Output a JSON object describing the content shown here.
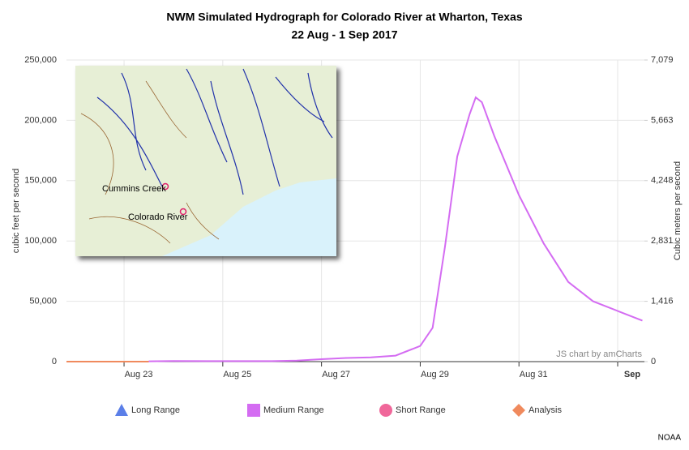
{
  "chart_data": {
    "type": "line",
    "title": "NWM Simulated Hydrograph for Colorado River at Wharton, Texas",
    "subtitle": "22 Aug - 1 Sep 2017",
    "y_label": "cubic feet per second",
    "y2_label": "Cubic meters per second",
    "xlim": [
      "2017-08-21T20:00",
      "2017-09-02T13:00"
    ],
    "xticks": [
      {
        "value": "2017-08-23T00:00",
        "label": "Aug 23"
      },
      {
        "value": "2017-08-25T00:00",
        "label": "Aug 25"
      },
      {
        "value": "2017-08-27T00:00",
        "label": "Aug 27"
      },
      {
        "value": "2017-08-29T00:00",
        "label": "Aug 29"
      },
      {
        "value": "2017-08-31T00:00",
        "label": "Aug 31"
      },
      {
        "value": "2017-09-02T00:00",
        "label": "Sep"
      }
    ],
    "ylim": [
      0,
      250000
    ],
    "yticks": [
      0,
      {
        "value": 50000,
        "label": "50,000"
      },
      {
        "value": 100000,
        "label": "100,000"
      },
      {
        "value": 150000,
        "label": "150,000"
      },
      {
        "value": 200000,
        "label": "200,000"
      },
      {
        "value": 250000,
        "label": "250,000"
      }
    ],
    "y2lim": [
      0,
      7079
    ],
    "y2ticks": [
      0,
      {
        "value": 1416,
        "label": "1,416"
      },
      {
        "value": 2831,
        "label": "2,831"
      },
      {
        "value": 4248,
        "label": "4,248"
      },
      {
        "value": 5663,
        "label": "5,663"
      },
      {
        "value": 7079,
        "label": "7,079"
      }
    ],
    "grid": true,
    "legend": "bottom",
    "series": [
      {
        "name": "Long Range",
        "color": "#5b7fe8",
        "marker": "triangle",
        "x": [],
        "values": []
      },
      {
        "name": "Medium Range",
        "color": "#d46cf2",
        "marker": "square",
        "x": [
          "2017-08-23T12:00",
          "2017-08-24T00:00",
          "2017-08-25T00:00",
          "2017-08-26T00:00",
          "2017-08-26T12:00",
          "2017-08-27T00:00",
          "2017-08-27T12:00",
          "2017-08-28T00:00",
          "2017-08-28T12:00",
          "2017-08-29T00:00",
          "2017-08-29T06:00",
          "2017-08-29T12:00",
          "2017-08-29T18:00",
          "2017-08-30T00:00",
          "2017-08-30T03:00",
          "2017-08-30T06:00",
          "2017-08-30T12:00",
          "2017-08-31T00:00",
          "2017-08-31T12:00",
          "2017-09-01T00:00",
          "2017-09-01T12:00",
          "2017-09-02T00:00",
          "2017-09-02T12:00"
        ],
        "values": [
          300,
          500,
          400,
          400,
          800,
          2000,
          3000,
          3500,
          5000,
          13000,
          28000,
          95000,
          170000,
          205000,
          219000,
          215000,
          187000,
          138000,
          98000,
          66000,
          50000,
          42000,
          34000
        ]
      },
      {
        "name": "Short Range",
        "color": "#f0679a",
        "marker": "circle",
        "x": [
          "2017-08-21T20:00",
          "2017-08-23T12:00"
        ],
        "values": [
          0,
          0
        ]
      },
      {
        "name": "Analysis",
        "color": "#f08a5d",
        "marker": "diamond",
        "x": [
          "2017-08-21T20:00",
          "2017-08-23T12:00"
        ],
        "values": [
          0,
          0
        ]
      }
    ],
    "annotations": [
      "JS chart by amCharts"
    ],
    "inset_map": {
      "labels": [
        "Cummins Creek",
        "Colorado River"
      ]
    },
    "source": "NOAA"
  }
}
